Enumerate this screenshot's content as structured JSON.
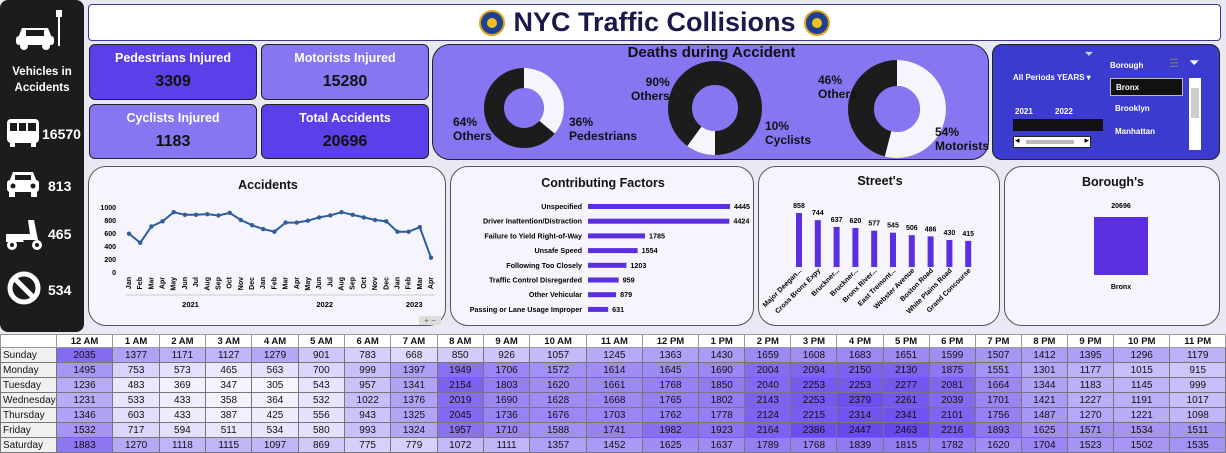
{
  "title": "NYC Traffic Collisions",
  "sidebar": {
    "title": "Vehicles in Accidents",
    "items": [
      {
        "icon": "bus-icon",
        "value": "16570"
      },
      {
        "icon": "car-icon",
        "value": "813"
      },
      {
        "icon": "scooter-icon",
        "value": "465"
      },
      {
        "icon": "prohibited-icon",
        "value": "534"
      }
    ]
  },
  "kpis": {
    "pedestrians": {
      "label": "Pedestrians Injured",
      "value": "3309"
    },
    "motorists": {
      "label": "Motorists Injured",
      "value": "15280"
    },
    "cyclists": {
      "label": "Cyclists Injured",
      "value": "1183"
    },
    "total": {
      "label": "Total Accidents",
      "value": "20696"
    }
  },
  "deaths": {
    "title": "Deaths during Accident",
    "donut1": {
      "others_pct": "64%",
      "others_label": "Others",
      "main_pct": "36%",
      "main_label": "Pedestrians"
    },
    "donut2": {
      "others_pct": "90%",
      "others_label": "Others",
      "main_pct": "10%",
      "main_label": "Cyclists"
    },
    "donut3": {
      "others_pct": "46%",
      "others_label": "Others",
      "main_pct": "54%",
      "main_label": "Motorists"
    }
  },
  "slicer": {
    "period_label": "All Periods",
    "period_unit": "YEARS",
    "year_2021": "2021",
    "year_2022": "2022",
    "borough_label": "Borough",
    "boroughs": [
      "Bronx",
      "Brooklyn",
      "Manhattan"
    ]
  },
  "charts": {
    "accidents": {
      "title": "Accidents",
      "type": "line",
      "yticks": [
        "1000",
        "800",
        "600",
        "400",
        "200",
        "0"
      ],
      "ylim": [
        0,
        1000
      ],
      "months": [
        "Jan",
        "Feb",
        "Mar",
        "Apr",
        "May",
        "Jun",
        "Jul",
        "Aug",
        "Sep",
        "Oct",
        "Nov",
        "Dec",
        "Jan",
        "Feb",
        "Mar",
        "Apr",
        "May",
        "Jun",
        "Jul",
        "Aug",
        "Sep",
        "Oct",
        "Nov",
        "Dec",
        "Jan",
        "Feb",
        "Mar",
        "Apr"
      ],
      "years": [
        "2021",
        "2022",
        "2023"
      ],
      "values": [
        590,
        450,
        700,
        780,
        920,
        880,
        880,
        890,
        870,
        910,
        800,
        720,
        660,
        620,
        760,
        760,
        790,
        840,
        870,
        920,
        880,
        840,
        800,
        780,
        620,
        620,
        690,
        220
      ]
    },
    "factors": {
      "title": "Contributing Factors",
      "type": "bar",
      "categories": [
        "Unspecified",
        "Driver Inattention/Distraction",
        "Failure to Yield Right-of-Way",
        "Unsafe Speed",
        "Following Too Closely",
        "Traffic Control Disregarded",
        "Other Vehicular",
        "Passing or Lane Usage Improper"
      ],
      "values": [
        4445,
        4424,
        1785,
        1554,
        1203,
        959,
        879,
        631
      ],
      "labels": [
        "4445",
        "4424",
        "1785",
        "1554",
        "1203",
        "959",
        "879",
        "631"
      ]
    },
    "streets": {
      "title": "Street's",
      "type": "bar",
      "categories": [
        "Major Deegan...",
        "Cross Bronx Expy",
        "Bruckner...",
        "Bruckner...",
        "Bronx River...",
        "East Tremont...",
        "Webster Avenue",
        "Boston Road",
        "White Plains Road",
        "Grand Concourse"
      ],
      "values": [
        858,
        744,
        637,
        620,
        577,
        545,
        506,
        486,
        430,
        415
      ],
      "labels": [
        "858",
        "744",
        "637",
        "620",
        "577",
        "545",
        "506",
        "486",
        "430",
        "415"
      ]
    },
    "boroughs": {
      "title": "Borough's",
      "type": "bar",
      "categories": [
        "Bronx"
      ],
      "values": [
        20696
      ],
      "labels": [
        "20696"
      ]
    }
  },
  "heatmap": {
    "hours": [
      "12 AM",
      "1 AM",
      "2 AM",
      "3 AM",
      "4 AM",
      "5 AM",
      "6 AM",
      "7 AM",
      "8 AM",
      "9 AM",
      "10 AM",
      "11 AM",
      "12 PM",
      "1 PM",
      "2 PM",
      "3 PM",
      "4 PM",
      "5 PM",
      "6 PM",
      "7 PM",
      "8 PM",
      "9 PM",
      "10 PM",
      "11 PM"
    ],
    "rows": [
      {
        "day": "Sunday",
        "values": [
          2035,
          1377,
          1171,
          1127,
          1279,
          901,
          783,
          668,
          850,
          926,
          1057,
          1245,
          1363,
          1430,
          1659,
          1608,
          1683,
          1651,
          1599,
          1507,
          1412,
          1395,
          1296,
          1179
        ]
      },
      {
        "day": "Monday",
        "values": [
          1495,
          753,
          573,
          465,
          563,
          700,
          999,
          1397,
          1949,
          1706,
          1572,
          1614,
          1645,
          1690,
          2004,
          2094,
          2150,
          2130,
          1875,
          1551,
          1301,
          1177,
          1015,
          915
        ]
      },
      {
        "day": "Tuesday",
        "values": [
          1236,
          483,
          369,
          347,
          305,
          543,
          957,
          1341,
          2154,
          1803,
          1620,
          1661,
          1768,
          1850,
          2040,
          2253,
          2253,
          2277,
          2081,
          1664,
          1344,
          1183,
          1145,
          999
        ]
      },
      {
        "day": "Wednesday",
        "values": [
          1231,
          533,
          433,
          358,
          364,
          532,
          1022,
          1376,
          2019,
          1690,
          1628,
          1668,
          1765,
          1802,
          2143,
          2253,
          2379,
          2261,
          2039,
          1701,
          1421,
          1227,
          1191,
          1017
        ]
      },
      {
        "day": "Thursday",
        "values": [
          1346,
          603,
          433,
          387,
          425,
          556,
          943,
          1325,
          2045,
          1736,
          1676,
          1703,
          1762,
          1778,
          2124,
          2215,
          2314,
          2341,
          2101,
          1756,
          1487,
          1270,
          1221,
          1098
        ]
      },
      {
        "day": "Friday",
        "values": [
          1532,
          717,
          594,
          511,
          534,
          580,
          993,
          1324,
          1957,
          1710,
          1588,
          1741,
          1982,
          1923,
          2164,
          2386,
          2447,
          2463,
          2216,
          1893,
          1625,
          1571,
          1534,
          1511
        ]
      },
      {
        "day": "Saturday",
        "values": [
          1883,
          1270,
          1118,
          1115,
          1097,
          869,
          775,
          779,
          1072,
          1111,
          1357,
          1452,
          1625,
          1637,
          1789,
          1768,
          1839,
          1815,
          1782,
          1620,
          1704,
          1523,
          1502,
          1535
        ]
      }
    ]
  }
}
